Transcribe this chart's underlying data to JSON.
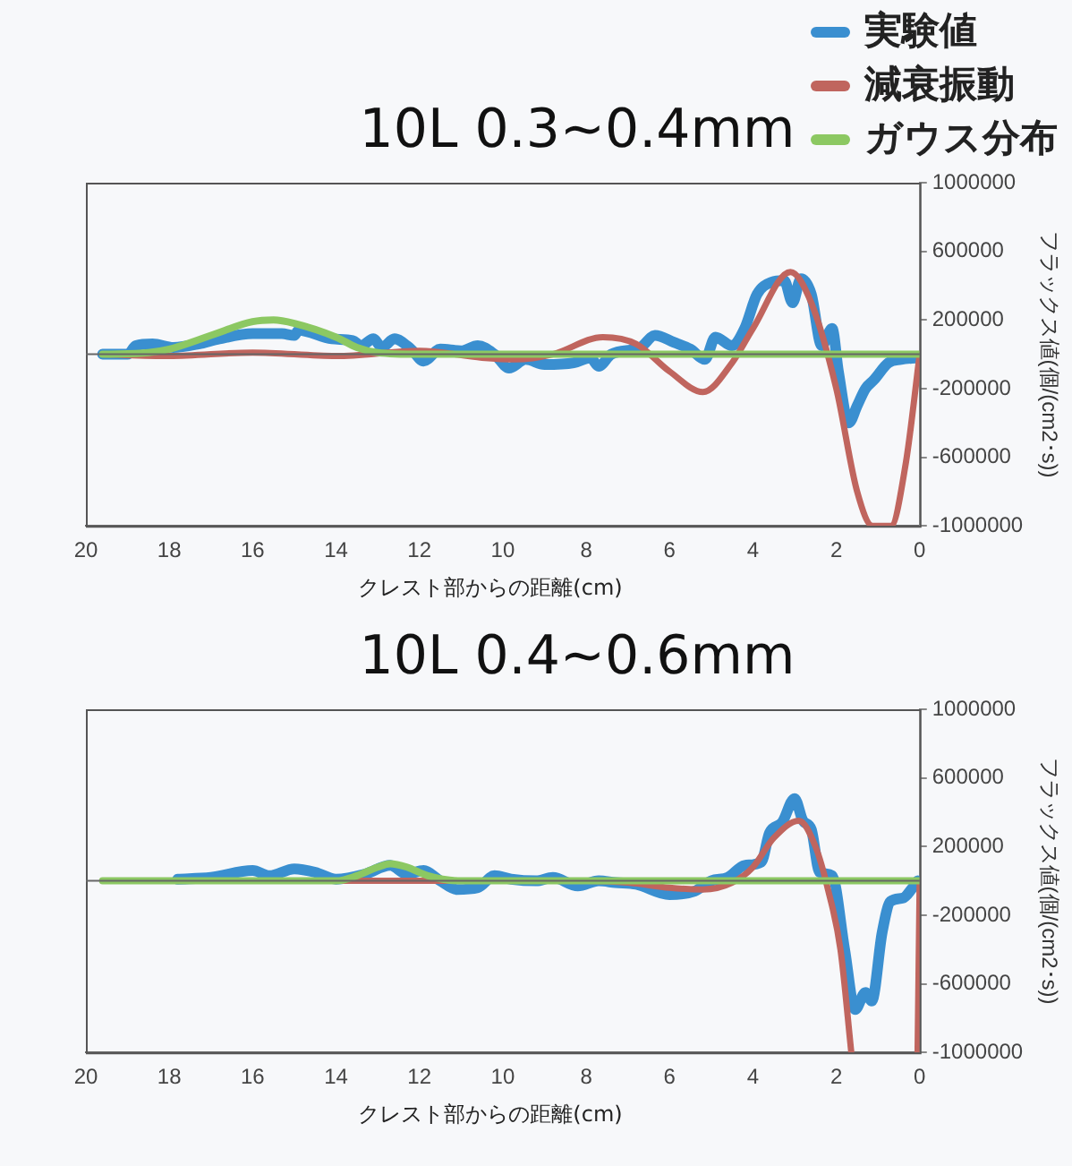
{
  "chart_data": [
    {
      "type": "line",
      "title": "10L 0.3~0.4mm",
      "xlabel": "クレスト部からの距離(cm)",
      "ylabel": "フラックス値(個/(cm2･s))",
      "legend": "top right",
      "xlim": [
        20,
        0
      ],
      "xticks": [
        20,
        18,
        16,
        14,
        12,
        10,
        8,
        6,
        4,
        2,
        0
      ],
      "ylim": [
        -1000000,
        1000000
      ],
      "yticks": [
        -1000000,
        -600000,
        -200000,
        200000,
        600000,
        1000000
      ],
      "grid": false,
      "series": [
        {
          "name": "実験値",
          "color": "#3a8fd0",
          "x": [
            19.6,
            19,
            18.8,
            18.4,
            17.9,
            17.3,
            16.8,
            16,
            15.3,
            15,
            14.9,
            14.1,
            13.6,
            13.4,
            13.1,
            12.9,
            12.6,
            12.2,
            11.9,
            11.5,
            11,
            10.6,
            10.2,
            9.85,
            9.45,
            9,
            8.3,
            7.9,
            7.7,
            7.4,
            6.7,
            6.35,
            5.9,
            5.5,
            5.15,
            4.9,
            4.5,
            4.2,
            3.9,
            3.55,
            3.25,
            3.05,
            2.85,
            2.6,
            2.35,
            2.1,
            1.95,
            1.7,
            1.5,
            1.3,
            1.1,
            0.75,
            0.45,
            0.05
          ],
          "values": [
            0,
            0,
            50000,
            60000,
            40000,
            60000,
            90000,
            120000,
            120000,
            110000,
            140000,
            90000,
            80000,
            50000,
            90000,
            40000,
            90000,
            30000,
            -40000,
            30000,
            20000,
            50000,
            0,
            -80000,
            -30000,
            -60000,
            -50000,
            -20000,
            -70000,
            0,
            40000,
            110000,
            70000,
            30000,
            -30000,
            100000,
            50000,
            150000,
            350000,
            420000,
            430000,
            300000,
            440000,
            350000,
            50000,
            150000,
            -100000,
            -400000,
            -300000,
            -200000,
            -150000,
            -50000,
            -30000,
            -20000
          ]
        },
        {
          "name": "減衰振動",
          "color": "#c0655e",
          "x": [
            19.6,
            18,
            16,
            14,
            12,
            10.5,
            9.7,
            8.8,
            7.6,
            6.8,
            6,
            5.2,
            4.5,
            4,
            3.1,
            2.6,
            2,
            1.5,
            1.13,
            0.69,
            0.33,
            0
          ],
          "values": [
            0,
            -10000,
            10000,
            -10000,
            20000,
            -20000,
            -30000,
            0,
            100000,
            60000,
            -100000,
            -220000,
            -50000,
            150000,
            480000,
            300000,
            -200000,
            -800000,
            -1000000,
            -1000000,
            -630000,
            0
          ]
        },
        {
          "name": "ガウス分布",
          "color": "#8cc862",
          "x": [
            19.6,
            18.5,
            18,
            17,
            16,
            15.5,
            15,
            14,
            13.5,
            13,
            12,
            0
          ],
          "values": [
            0,
            10000,
            30000,
            110000,
            190000,
            200000,
            180000,
            100000,
            40000,
            10000,
            0,
            0
          ]
        }
      ]
    },
    {
      "type": "line",
      "title": "10L 0.4~0.6mm",
      "xlabel": "クレスト部からの距離(cm)",
      "ylabel": "フラックス値(個/(cm2･s))",
      "xlim": [
        20,
        0
      ],
      "xticks": [
        20,
        18,
        16,
        14,
        12,
        10,
        8,
        6,
        4,
        2,
        0
      ],
      "ylim": [
        -1000000,
        1000000
      ],
      "yticks": [
        -1000000,
        -600000,
        -200000,
        200000,
        600000,
        1000000
      ],
      "grid": false,
      "series": [
        {
          "color": "#3a8fd0",
          "x": [
            17.8,
            17,
            16,
            15.6,
            15,
            14.5,
            14,
            13.3,
            12.7,
            12.3,
            11.9,
            11.5,
            11.1,
            10.6,
            10.2,
            9.8,
            9.2,
            8.8,
            8.2,
            7.7,
            7.3,
            6.8,
            6,
            5.4,
            5,
            4.6,
            4.2,
            3.8,
            3.6,
            3.3,
            3,
            2.8,
            2.6,
            2.4,
            2.1,
            1.8,
            1.55,
            1.3,
            1.15,
            0.9,
            0.7,
            0.4,
            0.2,
            0.05
          ],
          "values": [
            10000,
            20000,
            60000,
            30000,
            70000,
            50000,
            10000,
            40000,
            90000,
            40000,
            60000,
            0,
            -50000,
            -40000,
            30000,
            10000,
            0,
            20000,
            -30000,
            0,
            -10000,
            -20000,
            -80000,
            -60000,
            0,
            20000,
            90000,
            110000,
            280000,
            340000,
            480000,
            350000,
            300000,
            50000,
            30000,
            -400000,
            -750000,
            -650000,
            -700000,
            -300000,
            -120000,
            -100000,
            -50000,
            0
          ]
        },
        {
          "color": "#c0655e",
          "x": [
            19.6,
            8,
            7,
            6,
            5.2,
            4.5,
            4,
            3.5,
            2.9,
            2.5,
            2.2,
            1.9,
            1.64,
            1.2,
            0.05,
            0
          ],
          "values": [
            0,
            0,
            -10000,
            -40000,
            -50000,
            -10000,
            80000,
            250000,
            350000,
            200000,
            -50000,
            -400000,
            -1000000,
            null,
            -1000000,
            0
          ]
        },
        {
          "color": "#8cc862",
          "x": [
            19.6,
            14,
            13.5,
            13,
            12.7,
            12.3,
            11.8,
            11,
            0
          ],
          "values": [
            0,
            0,
            30000,
            80000,
            100000,
            80000,
            30000,
            0,
            0
          ]
        }
      ]
    }
  ]
}
